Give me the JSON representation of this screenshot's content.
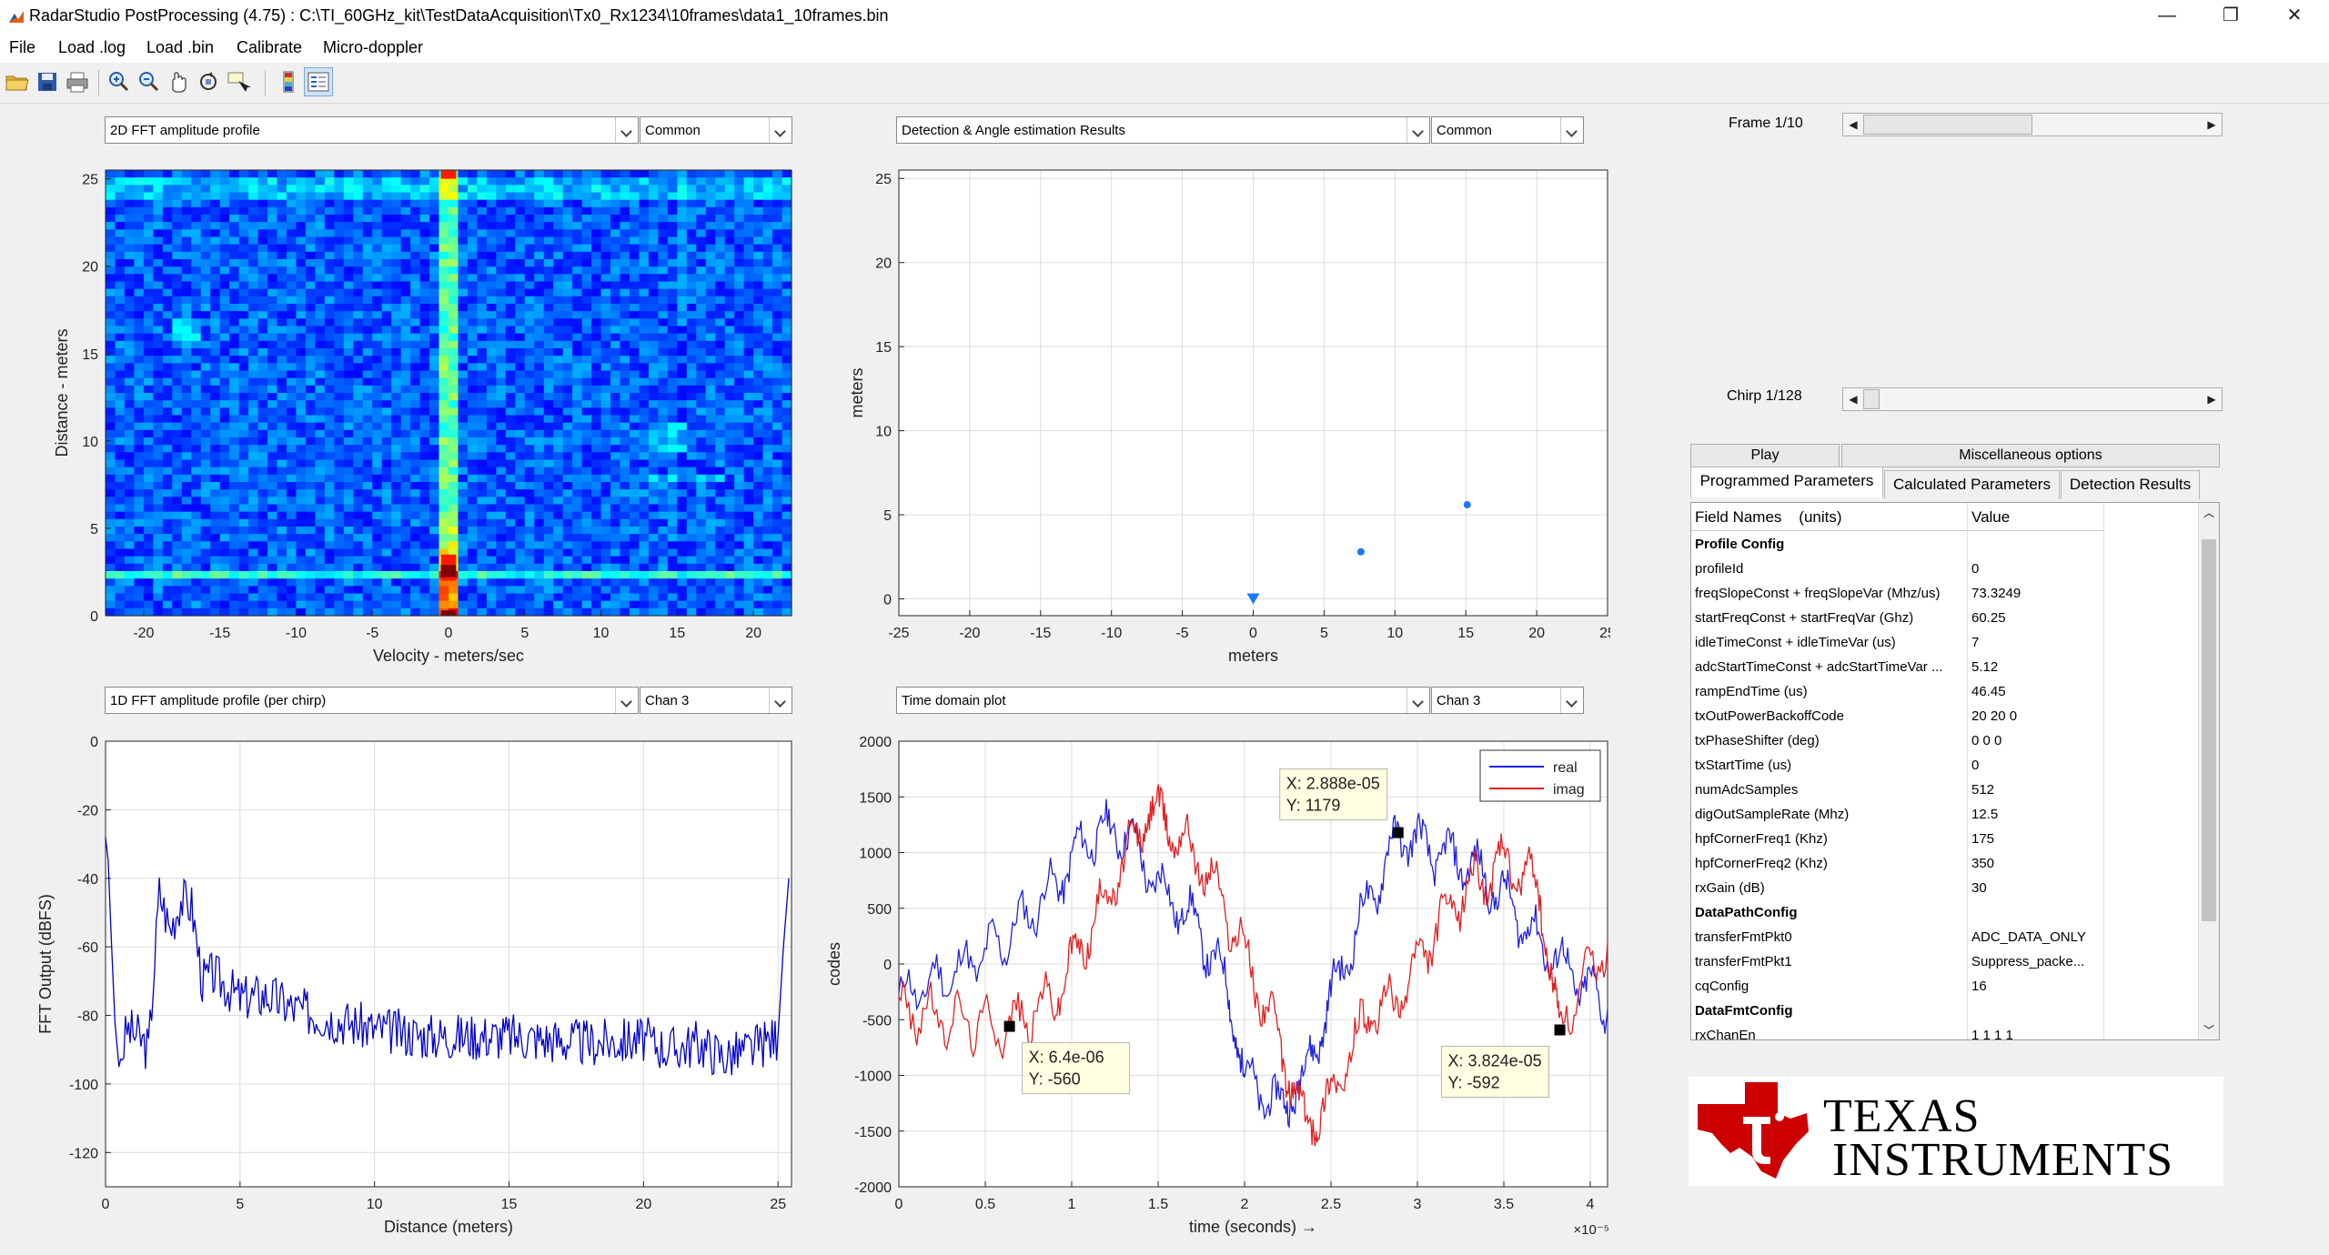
{
  "window": {
    "title": "RadarStudio PostProcessing (4.75)  : C:\\TI_60GHz_kit\\TestDataAcquisition\\Tx0_Rx1234\\10frames\\data1_10frames.bin",
    "minimize": "—",
    "restore": "❐",
    "close": "✕"
  },
  "menu": [
    "File",
    "Load .log",
    "Load .bin",
    "Calibrate",
    "Micro-doppler"
  ],
  "toolbar_icons": [
    "open-folder-icon",
    "save-icon",
    "print-icon",
    "zoom-in-icon",
    "zoom-out-icon",
    "pan-hand-icon",
    "rotate-3d-icon",
    "data-cursor-icon",
    "colorbar-icon",
    "legend-icon"
  ],
  "panels": {
    "top_left": {
      "plot_select": "2D FFT amplitude profile",
      "channel_select": "Common"
    },
    "top_mid": {
      "plot_select": "Detection & Angle estimation Results",
      "channel_select": "Common"
    },
    "bottom_left": {
      "plot_select": "1D FFT amplitude profile (per chirp)",
      "channel_select": "Chan 3"
    },
    "bottom_mid": {
      "plot_select": "Time domain plot",
      "channel_select": "Chan 3"
    }
  },
  "frame": {
    "label": "Frame 1/10",
    "current": 1,
    "total": 10
  },
  "chirp": {
    "label": "Chirp 1/128",
    "current": 1,
    "total": 128
  },
  "buttons": {
    "play": "Play",
    "misc": "Miscellaneous options"
  },
  "tabs": [
    "Programmed Parameters",
    "Calculated Parameters",
    "Detection Results"
  ],
  "active_tab": 0,
  "table": {
    "headers": [
      "Field Names    (units)",
      "Value"
    ],
    "rows": [
      {
        "field": "Profile Config",
        "value": "",
        "section": true
      },
      {
        "field": "profileId",
        "value": "0"
      },
      {
        "field": "freqSlopeConst + freqSlopeVar (Mhz/us)",
        "value": "73.3249"
      },
      {
        "field": "startFreqConst + startFreqVar (Ghz)",
        "value": "60.25"
      },
      {
        "field": "idleTimeConst + idleTimeVar (us)",
        "value": "7"
      },
      {
        "field": "adcStartTimeConst + adcStartTimeVar ...",
        "value": "5.12"
      },
      {
        "field": "rampEndTime (us)",
        "value": "46.45"
      },
      {
        "field": "txOutPowerBackoffCode",
        "value": "20 20 0"
      },
      {
        "field": "txPhaseShifter (deg)",
        "value": "0 0 0"
      },
      {
        "field": "txStartTime (us)",
        "value": "0"
      },
      {
        "field": "numAdcSamples",
        "value": "512"
      },
      {
        "field": "digOutSampleRate (Mhz)",
        "value": "12.5"
      },
      {
        "field": "hpfCornerFreq1 (Khz)",
        "value": "175"
      },
      {
        "field": "hpfCornerFreq2 (Khz)",
        "value": "350"
      },
      {
        "field": "rxGain (dB)",
        "value": "30"
      },
      {
        "field": "DataPathConfig",
        "value": "",
        "section": true
      },
      {
        "field": "transferFmtPkt0",
        "value": "ADC_DATA_ONLY"
      },
      {
        "field": "transferFmtPkt1",
        "value": "Suppress_packe..."
      },
      {
        "field": "cqConfig",
        "value": "16"
      },
      {
        "field": "DataFmtConfig",
        "value": "",
        "section": true
      },
      {
        "field": "rxChanEn",
        "value": "1 1 1 1"
      }
    ]
  },
  "logo": {
    "line1": "Texas",
    "line2": "Instruments"
  },
  "chart_data": [
    {
      "type": "heatmap",
      "xlabel": "Velocity - meters/sec",
      "ylabel": "Distance - meters",
      "xlim": [
        -22.5,
        22.5
      ],
      "ylim": [
        0,
        25.5
      ],
      "xticks": [
        -20,
        -15,
        -10,
        -5,
        0,
        5,
        10,
        15,
        20
      ],
      "yticks": [
        0,
        5,
        10,
        15,
        20,
        25
      ],
      "colormap": "jet"
    },
    {
      "type": "scatter",
      "xlabel": "meters",
      "ylabel": "meters",
      "xlim": [
        -25,
        25
      ],
      "ylim": [
        -1,
        25.5
      ],
      "xticks": [
        -25,
        -20,
        -15,
        -10,
        -5,
        0,
        5,
        10,
        15,
        20,
        25
      ],
      "yticks": [
        0,
        5,
        10,
        15,
        20,
        25
      ],
      "grid": true,
      "points": [
        {
          "x": 7.6,
          "y": 2.8
        },
        {
          "x": 15.1,
          "y": 5.6
        }
      ],
      "radar_marker": {
        "x": 0,
        "y": 0
      },
      "color": "#1f77ff"
    },
    {
      "type": "line",
      "xlabel": "Distance (meters)",
      "ylabel": "FFT Output (dBFS)",
      "xlim": [
        0,
        25.5
      ],
      "ylim": [
        -130,
        0
      ],
      "xticks": [
        0,
        5,
        10,
        15,
        20,
        25
      ],
      "yticks": [
        0,
        -20,
        -40,
        -60,
        -80,
        -100,
        -120
      ],
      "grid": true,
      "series": [
        {
          "color": "#0000c8",
          "x": [
            0,
            0.1,
            0.2,
            0.35,
            0.5,
            0.8,
            1.2,
            1.6,
            2.0,
            2.4,
            2.8,
            3.2,
            3.6,
            4.0,
            5,
            6,
            7,
            8,
            10,
            12,
            15,
            18,
            20,
            21,
            22,
            23,
            24,
            25,
            25.2,
            25.4
          ],
          "y": [
            -28,
            -35,
            -55,
            -82,
            -95,
            -84,
            -86,
            -90,
            -44,
            -55,
            -46,
            -48,
            -70,
            -68,
            -75,
            -74,
            -78,
            -80,
            -84,
            -86,
            -86,
            -88,
            -87,
            -90,
            -88,
            -92,
            -90,
            -86,
            -60,
            -40
          ]
        }
      ]
    },
    {
      "type": "line",
      "xlabel": "time  (seconds) →",
      "ylabel": "codes",
      "exponent": "×10⁻⁵",
      "xlim": [
        0,
        4.1
      ],
      "ylim": [
        -2000,
        2000
      ],
      "xticks": [
        0,
        0.5,
        1,
        1.5,
        2,
        2.5,
        3,
        3.5,
        4
      ],
      "yticks": [
        2000,
        1500,
        1000,
        500,
        0,
        -500,
        -1000,
        -1500,
        -2000
      ],
      "grid": true,
      "legend": "top-right",
      "series": [
        {
          "name": "real",
          "color": "#2020e0",
          "x": [
            0,
            0.3,
            0.6,
            0.9,
            1.1,
            1.3,
            1.5,
            1.7,
            1.9,
            2.0,
            2.2,
            2.35,
            2.5,
            2.7,
            2.9,
            3.1,
            3.3,
            3.5,
            3.7,
            3.9,
            4.1
          ],
          "y": [
            -300,
            -100,
            200,
            700,
            1150,
            1200,
            700,
            400,
            -200,
            -1000,
            -1300,
            -1000,
            -300,
            500,
            1179,
            1000,
            900,
            600,
            200,
            -100,
            -400
          ]
        },
        {
          "name": "imag",
          "color": "#e02020",
          "x": [
            0,
            0.3,
            0.64,
            0.9,
            1.1,
            1.3,
            1.45,
            1.6,
            1.8,
            2.0,
            2.2,
            2.35,
            2.5,
            2.7,
            2.9,
            3.1,
            3.3,
            3.5,
            3.7,
            3.82,
            4.1
          ],
          "y": [
            -400,
            -500,
            -560,
            -300,
            300,
            900,
            1400,
            1200,
            800,
            100,
            -700,
            -1450,
            -1200,
            -500,
            -300,
            300,
            700,
            900,
            700,
            -592,
            200
          ]
        }
      ],
      "datatips": [
        {
          "x_label": "X: 6.4e-06",
          "y_label": "Y: -560",
          "x": 0.64,
          "y": -560
        },
        {
          "x_label": "X: 2.888e-05",
          "y_label": "Y: 1179",
          "x": 2.888,
          "y": 1179
        },
        {
          "x_label": "X: 3.824e-05",
          "y_label": "Y: -592",
          "x": 3.824,
          "y": -592
        }
      ]
    }
  ]
}
